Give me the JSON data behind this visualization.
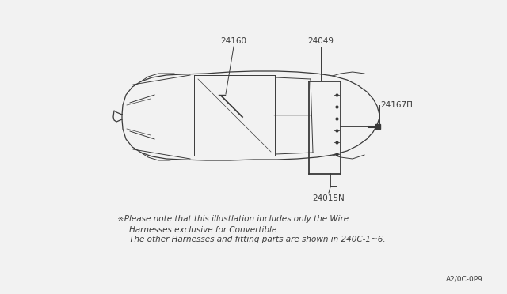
{
  "bg_color": "#f2f2f2",
  "line_color": "#3a3a3a",
  "note_line1": "※Please note that this illustlation includes only the Wire",
  "note_line2": "Harnesses exclusive for Convertible.",
  "note_line3": "The other Harnesses and fitting parts are shown in 240C-1~6.",
  "page_code": "A2/0C-0P9",
  "label_24160": "24160",
  "label_24049": "24049",
  "label_24167": "24167Π",
  "label_24015": "24015N",
  "note_fontsize": 7.5,
  "label_fontsize": 7.0
}
